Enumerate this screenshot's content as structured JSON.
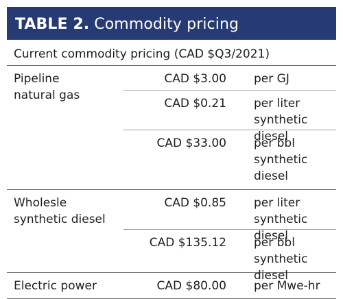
{
  "table": {
    "title_bold": "TABLE 2.",
    "title_rest": "Commodity pricing",
    "caption": "Current commodity pricing (CAD $Q3/2021)",
    "groups": [
      {
        "label": [
          "Pipeline",
          "natural gas"
        ],
        "rows": [
          {
            "price": "CAD $3.00",
            "unit": [
              "per GJ"
            ]
          },
          {
            "price": "CAD $0.21",
            "unit": [
              "per liter",
              "synthetic diesel"
            ]
          },
          {
            "price": "CAD $33.00",
            "unit": [
              "per bbl",
              "synthetic diesel"
            ]
          }
        ]
      },
      {
        "label": [
          "Wholesle",
          "synthetic diesel"
        ],
        "rows": [
          {
            "price": "CAD $0.85",
            "unit": [
              "per liter",
              "synthetic diesel"
            ]
          },
          {
            "price": "CAD $135.12",
            "unit": [
              "per bbl",
              "synthetic diesel"
            ]
          }
        ]
      },
      {
        "label": [
          "Electric power"
        ],
        "rows": [
          {
            "price": "CAD $80.00",
            "unit": [
              "per Mwe-hr"
            ]
          }
        ]
      }
    ]
  },
  "colors": {
    "header_bg": "#263a73",
    "header_text": "#ffffff",
    "rule": "#6a6a6a"
  }
}
